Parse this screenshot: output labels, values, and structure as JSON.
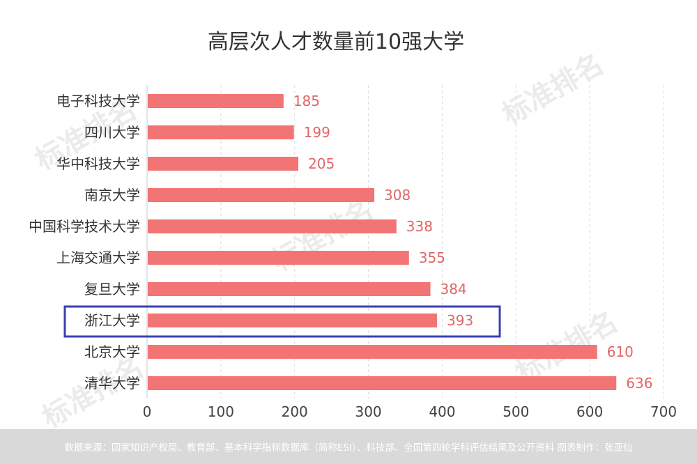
{
  "chart_data": {
    "type": "bar",
    "orientation": "horizontal",
    "title": "高层次人才数量前10强大学",
    "categories": [
      "电子科技大学",
      "四川大学",
      "华中科技大学",
      "南京大学",
      "中国科学技术大学",
      "上海交通大学",
      "复旦大学",
      "浙江大学",
      "北京大学",
      "清华大学"
    ],
    "values": [
      185,
      199,
      205,
      308,
      338,
      355,
      384,
      393,
      610,
      636
    ],
    "xlim": [
      0,
      700
    ],
    "xticks": [
      0,
      100,
      200,
      300,
      400,
      500,
      600,
      700
    ],
    "grid": "vertical-dashed",
    "highlighted_category": "浙江大学",
    "bar_color": "#f27474",
    "value_label_color": "#e06666",
    "highlight_box_color": "#3a3fb0"
  },
  "watermark": {
    "text": "标准排名",
    "color": "#ebebeb"
  },
  "footer": {
    "text": "数据来源：国家知识产权局、教育部、基本科学指标数据库（简称ESI）、科技部、全国第四轮学科评估结果及公开资料  图表制作：张亚仙"
  }
}
